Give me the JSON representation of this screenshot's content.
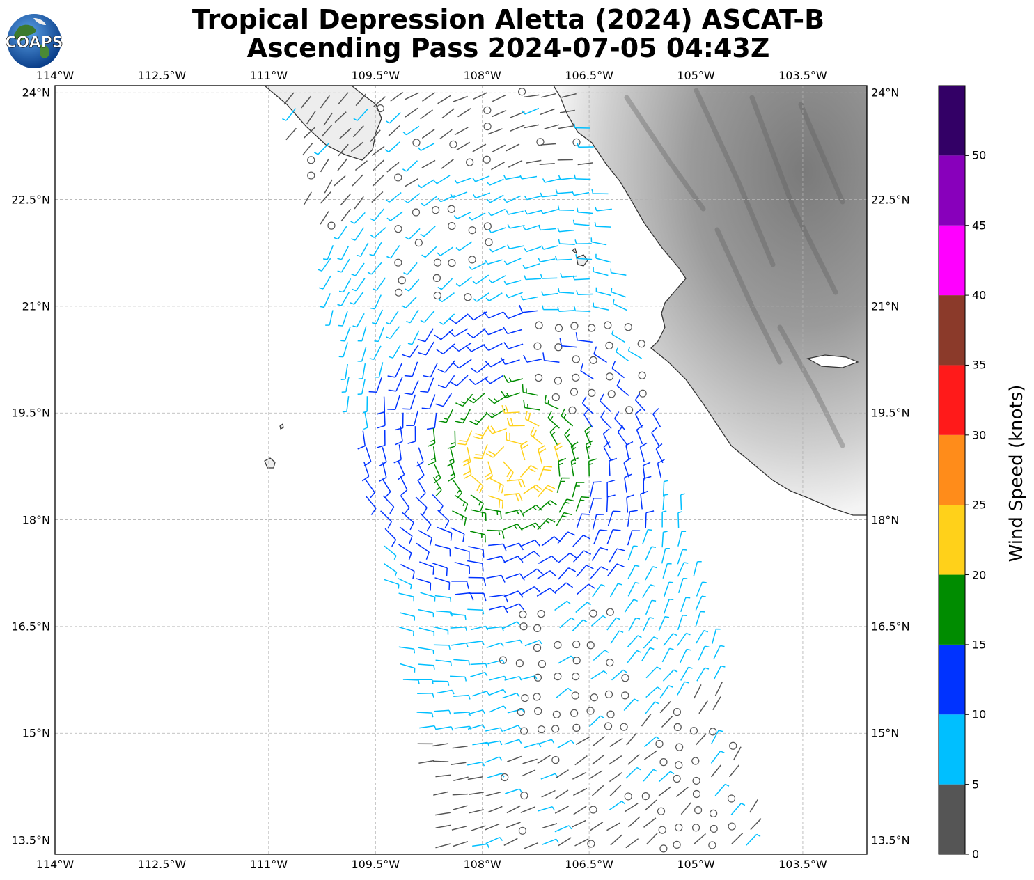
{
  "title": {
    "line1": "Tropical Depression Aletta (2024) ASCAT-B",
    "line2": "Ascending Pass 2024-07-05 04:43Z"
  },
  "logo": {
    "text": "COAPS",
    "icon": "globe-logo-icon"
  },
  "map": {
    "lon_range": [
      -114.0,
      -102.6
    ],
    "lat_range": [
      13.3,
      24.1
    ],
    "lon_ticks": [
      {
        "value": -114.0,
        "label": "114°W"
      },
      {
        "value": -112.5,
        "label": "112.5°W"
      },
      {
        "value": -111.0,
        "label": "111°W"
      },
      {
        "value": -109.5,
        "label": "109.5°W"
      },
      {
        "value": -108.0,
        "label": "108°W"
      },
      {
        "value": -106.5,
        "label": "106.5°W"
      },
      {
        "value": -105.0,
        "label": "105°W"
      },
      {
        "value": -103.5,
        "label": "103.5°W"
      }
    ],
    "lat_ticks": [
      {
        "value": 24.0,
        "label": "24°N"
      },
      {
        "value": 22.5,
        "label": "22.5°N"
      },
      {
        "value": 21.0,
        "label": "21°N"
      },
      {
        "value": 19.5,
        "label": "19.5°N"
      },
      {
        "value": 18.0,
        "label": "18°N"
      },
      {
        "value": 16.5,
        "label": "16.5°N"
      },
      {
        "value": 15.0,
        "label": "15°N"
      },
      {
        "value": 13.5,
        "label": "13.5°N"
      }
    ],
    "storm_center": {
      "lon": -107.6,
      "lat": 18.85
    },
    "gridlines": "dashed"
  },
  "colorbar": {
    "label": "Wind Speed (knots)",
    "bins": [
      {
        "min": 0,
        "max": 5,
        "color": "#555555"
      },
      {
        "min": 5,
        "max": 10,
        "color": "#00bfff"
      },
      {
        "min": 10,
        "max": 15,
        "color": "#0033ff"
      },
      {
        "min": 15,
        "max": 20,
        "color": "#008c00"
      },
      {
        "min": 20,
        "max": 25,
        "color": "#ffd11a"
      },
      {
        "min": 25,
        "max": 30,
        "color": "#ff8c1a"
      },
      {
        "min": 30,
        "max": 35,
        "color": "#ff1a1a"
      },
      {
        "min": 35,
        "max": 40,
        "color": "#8b3a2a"
      },
      {
        "min": 40,
        "max": 45,
        "color": "#ff00ff"
      },
      {
        "min": 45,
        "max": 50,
        "color": "#8800bb"
      },
      {
        "min": 50,
        "max": 55,
        "color": "#330066"
      }
    ],
    "tick_labels": [
      "0",
      "5",
      "10",
      "15",
      "20",
      "25",
      "30",
      "35",
      "40",
      "45",
      "50"
    ]
  },
  "colors": {
    "coastline": "#333333",
    "grid": "#b0b0b0",
    "terrain_dark": "#6e6e6e",
    "terrain_light": "#f2f2f2"
  }
}
